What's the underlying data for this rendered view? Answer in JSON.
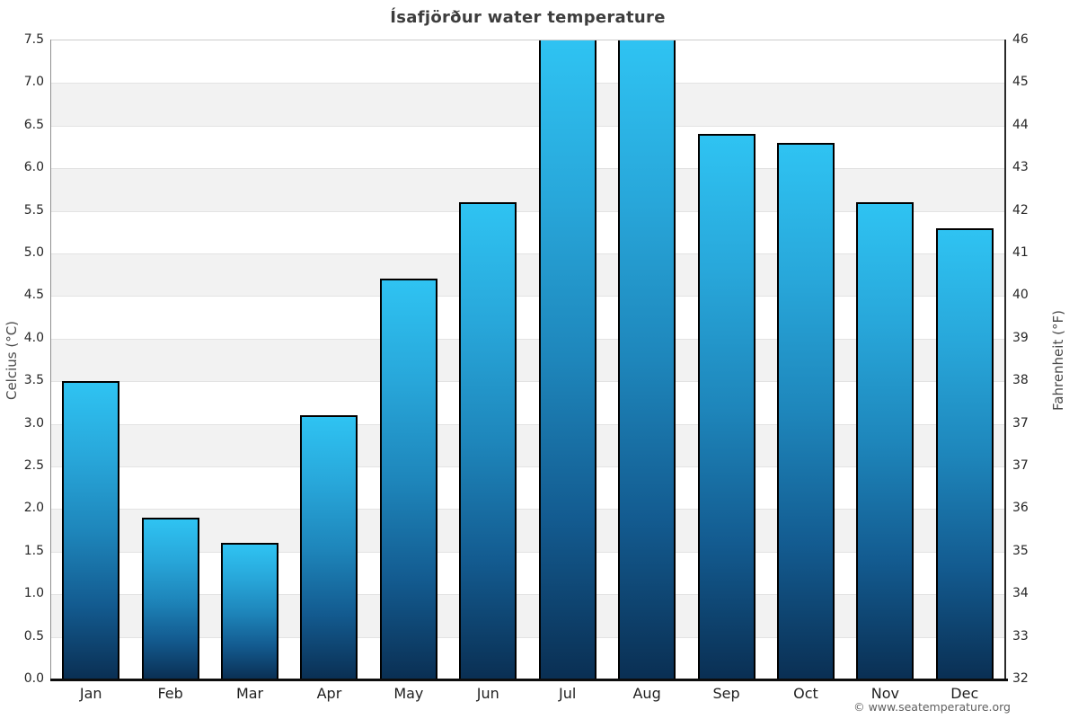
{
  "header": {
    "title": "Ísafjörður water temperature"
  },
  "footer": {
    "copyright": "© www.seatemperature.org"
  },
  "chart_data": {
    "type": "bar",
    "title": "Ísafjörður water temperature",
    "categories": [
      "Jan",
      "Feb",
      "Mar",
      "Apr",
      "May",
      "Jun",
      "Jul",
      "Aug",
      "Sep",
      "Oct",
      "Nov",
      "Dec"
    ],
    "values": [
      3.5,
      1.9,
      1.6,
      3.1,
      4.7,
      5.6,
      7.5,
      7.5,
      6.4,
      6.3,
      5.6,
      5.3
    ],
    "clipped_at_axis_top": [
      false,
      false,
      false,
      false,
      false,
      false,
      true,
      true,
      false,
      false,
      false,
      false
    ],
    "ylabel_left": "Celcius (°C)",
    "ylabel_right": "Fahrenheit (°F)",
    "ylim": [
      0,
      7.5
    ],
    "ytick_interval": 0.5,
    "yticks_left": [
      "7.5",
      "7.0",
      "6.5",
      "6.0",
      "5.5",
      "5.0",
      "4.5",
      "4.0",
      "3.5",
      "3.0",
      "2.5",
      "2.0",
      "1.5",
      "1.0",
      "0.5",
      "0.0"
    ],
    "yticks_right": [
      "46",
      "45",
      "44",
      "43",
      "42",
      "41",
      "40",
      "39",
      "38",
      "37",
      "37",
      "36",
      "35",
      "34",
      "33",
      "32"
    ],
    "legend": "none",
    "grid": "horizontal-bands",
    "colors": {
      "bar_gradient": [
        "#2fc3f2",
        "#28a7da",
        "#1e86bb",
        "#135b90",
        "#0a2f53"
      ],
      "bar_border": "#000000",
      "band_light": "#ffffff",
      "band_dark": "#f2f2f2",
      "gridline": "#e3e3e3",
      "axis_bottom": "#0d0d0d",
      "axis_left": "#8f8f8f",
      "axis_right": "#2a2a2a",
      "title_color": "#3d3d3d",
      "tick_color": "#262626",
      "copyright_color": "#5f5f5f"
    }
  }
}
